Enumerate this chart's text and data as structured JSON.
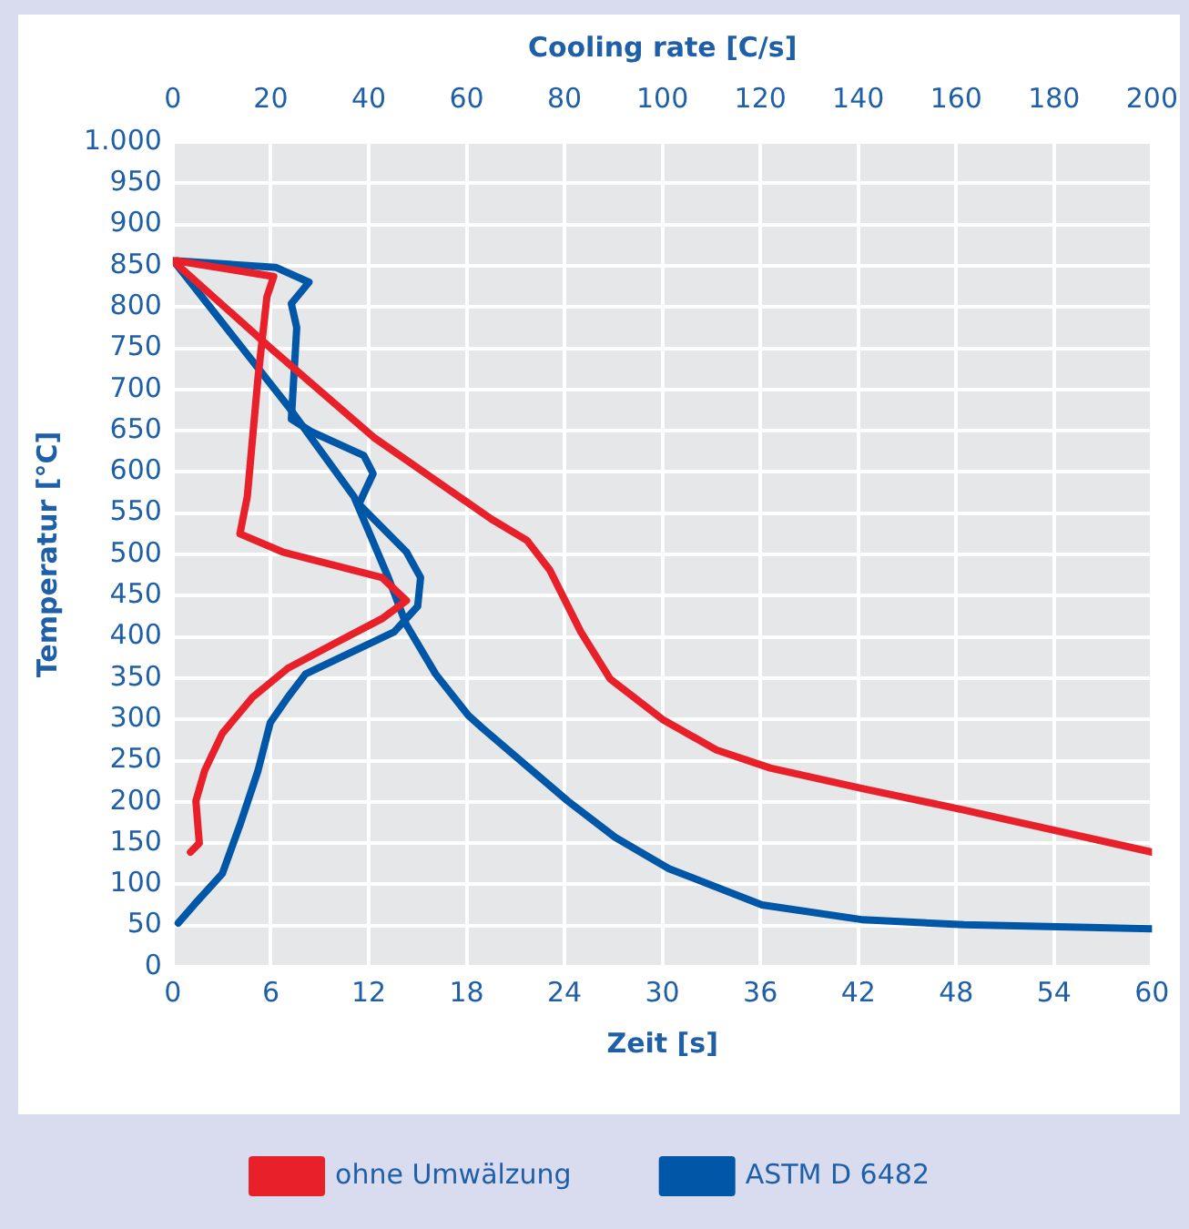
{
  "chart_data": {
    "type": "line",
    "xlabel": "Zeit [s]",
    "x2label": "Cooling rate [C/s]",
    "ylabel": "Temperatur [°C]",
    "xlim": [
      0,
      60
    ],
    "xticks": [
      0,
      6,
      12,
      18,
      24,
      30,
      36,
      42,
      48,
      54,
      60
    ],
    "x2lim": [
      0,
      200
    ],
    "x2ticks": [
      0,
      20,
      40,
      60,
      80,
      100,
      120,
      140,
      160,
      180,
      200
    ],
    "ylim": [
      0,
      1000
    ],
    "yticks": [
      0,
      50,
      100,
      150,
      200,
      250,
      300,
      350,
      400,
      450,
      500,
      550,
      600,
      650,
      700,
      750,
      800,
      850,
      900,
      950,
      {
        "value": 1000,
        "label": "1.000"
      }
    ],
    "grid": true,
    "legend": "bottom",
    "marker": "none",
    "line_style": "solid",
    "series": [
      {
        "name": "ohne Umwälzung",
        "color": "#e8202a",
        "x": [
          0,
          6,
          12.3,
          19.5,
          21.7,
          23.1,
          25,
          26.8,
          30,
          33.3,
          36.6,
          42.3,
          48.5,
          60
        ],
        "values": [
          856,
          750,
          642,
          543,
          517,
          481,
          406,
          349,
          300,
          263,
          241,
          216,
          190,
          139
        ]
      },
      {
        "color": "#e8202a",
        "axis": "x2",
        "x": [
          0.7,
          20.6,
          19.2,
          17.4,
          15.2,
          13.7,
          22.4,
          42.7,
          47.7,
          42.7,
          33.3,
          23.5,
          16.3,
          10.1,
          6.5,
          4.7,
          5.4,
          3.6
        ],
        "values": [
          856,
          837,
          812,
          715,
          570,
          525,
          503,
          472,
          444,
          422,
          393,
          362,
          327,
          283,
          238,
          201,
          150,
          139
        ]
      },
      {
        "name": "ASTM D 6482",
        "color": "#0057a8",
        "x": [
          0,
          0.2,
          7.05,
          11.1,
          13.2,
          14.3,
          16.1,
          18.1,
          19,
          24.2,
          27.1,
          30.4,
          36.1,
          42.3,
          48.5,
          60
        ],
        "values": [
          856,
          852,
          680,
          570,
          472,
          415,
          355,
          305,
          289,
          201,
          157,
          119,
          75,
          57,
          51,
          46
        ]
      },
      {
        "color": "#0057a8",
        "axis": "x2",
        "x": [
          0.7,
          21,
          27.8,
          24.2,
          25.3,
          24.2,
          28.2,
          39,
          40.9,
          38,
          47.7,
          50.6,
          50,
          45.2,
          27.1,
          23.5,
          19.9,
          17.4,
          13.7,
          10.1,
          4.3,
          1.1
        ],
        "values": [
          856,
          848,
          830,
          804,
          775,
          664,
          649,
          620,
          598,
          561,
          503,
          472,
          437,
          406,
          355,
          327,
          296,
          238,
          172,
          113,
          75,
          53
        ]
      }
    ]
  }
}
